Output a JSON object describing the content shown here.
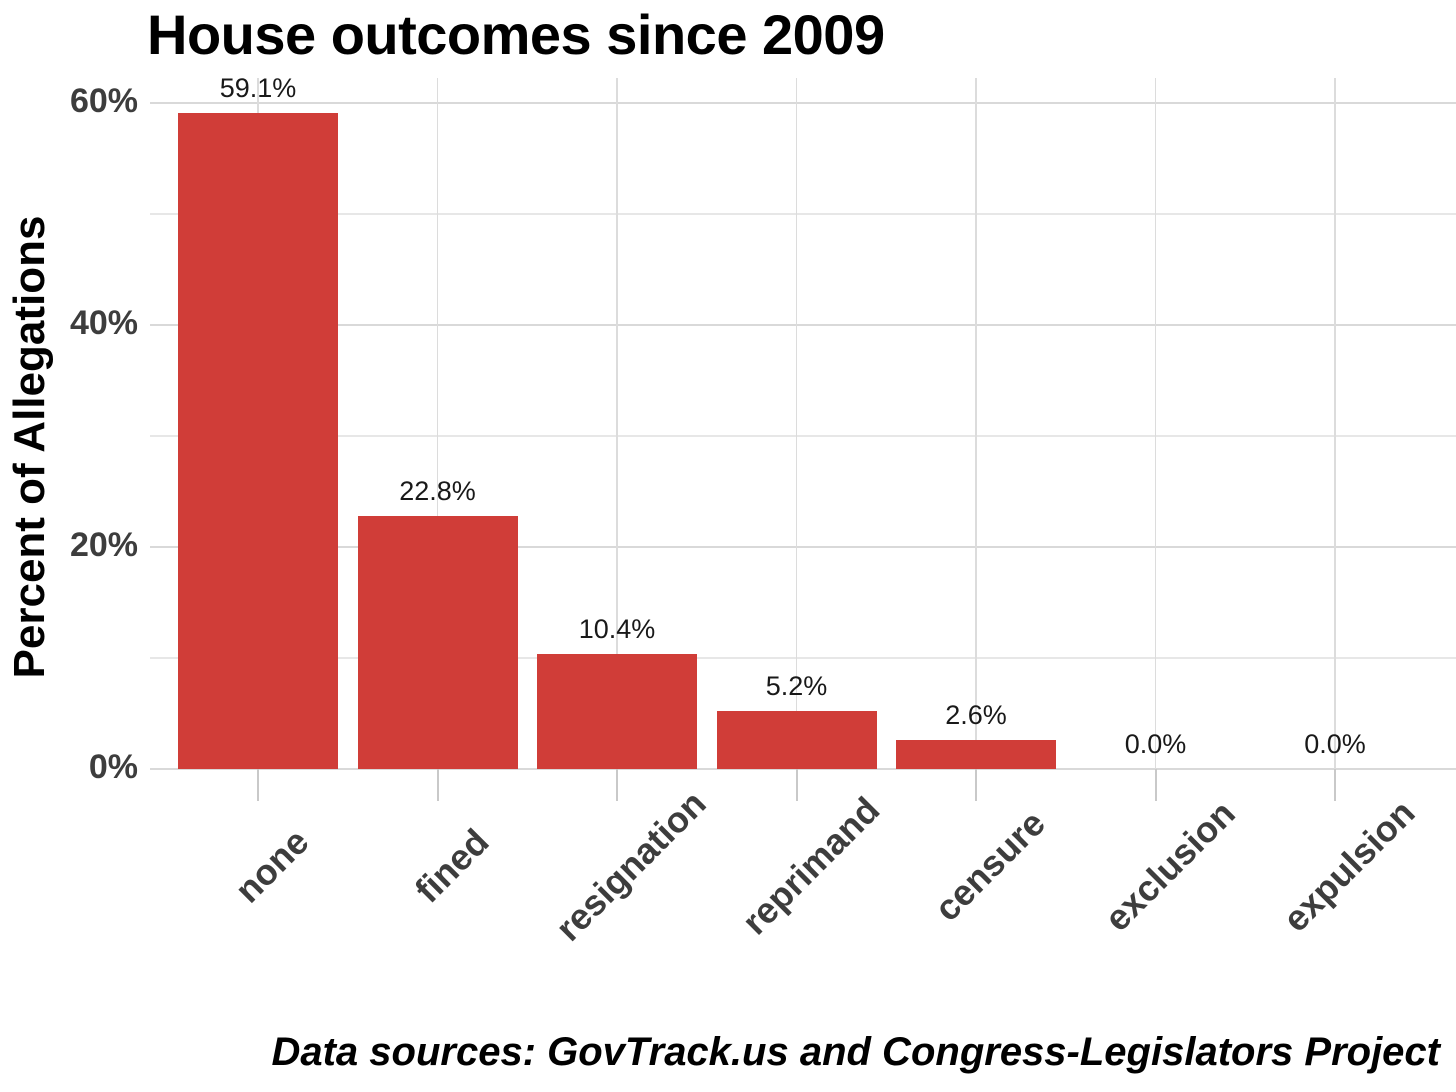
{
  "chart_data": {
    "type": "bar",
    "title": "House outcomes since 2009",
    "ylabel": "Percent of Allegations",
    "xlabel": "",
    "categories": [
      "none",
      "fined",
      "resignation",
      "reprimand",
      "censure",
      "exclusion",
      "expulsion"
    ],
    "values": [
      59.1,
      22.8,
      10.4,
      5.2,
      2.6,
      0.0,
      0.0
    ],
    "value_labels": [
      "59.1%",
      "22.8%",
      "10.4%",
      "5.2%",
      "2.6%",
      "0.0%",
      "0.0%"
    ],
    "y_ticks": [
      {
        "label": "0%",
        "value": 0
      },
      {
        "label": "20%",
        "value": 20
      },
      {
        "label": "40%",
        "value": 40
      },
      {
        "label": "60%",
        "value": 60
      }
    ],
    "ylim": [
      0,
      62
    ],
    "grid": true,
    "legend_position": "none",
    "bar_color": "#d03d38"
  },
  "caption": "Data sources: GovTrack.us and Congress-Legislators Project"
}
